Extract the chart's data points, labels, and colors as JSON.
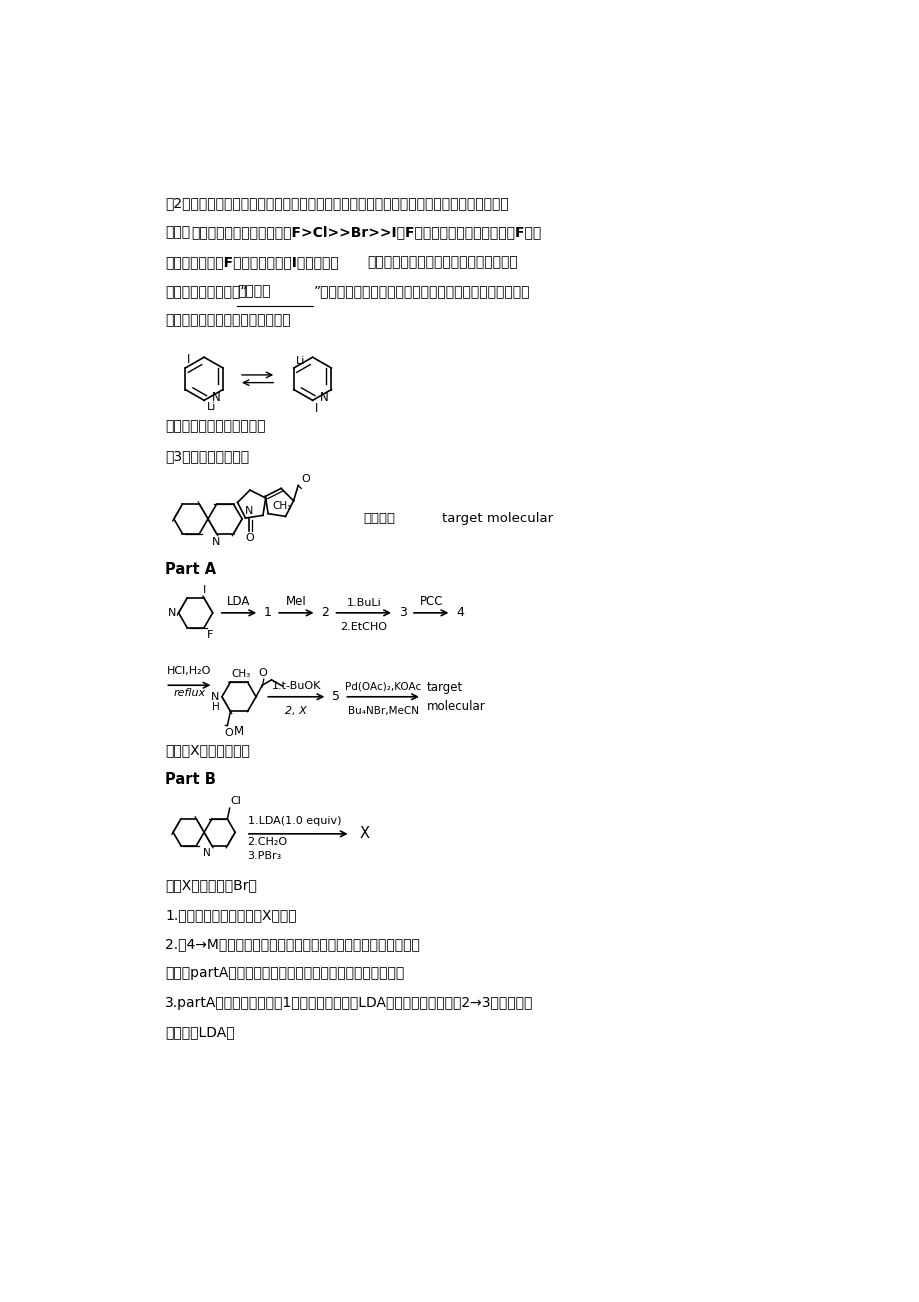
{
  "background_color": "#ffffff",
  "text_color": "#000000",
  "page_width": 9.2,
  "page_height": 13.02
}
